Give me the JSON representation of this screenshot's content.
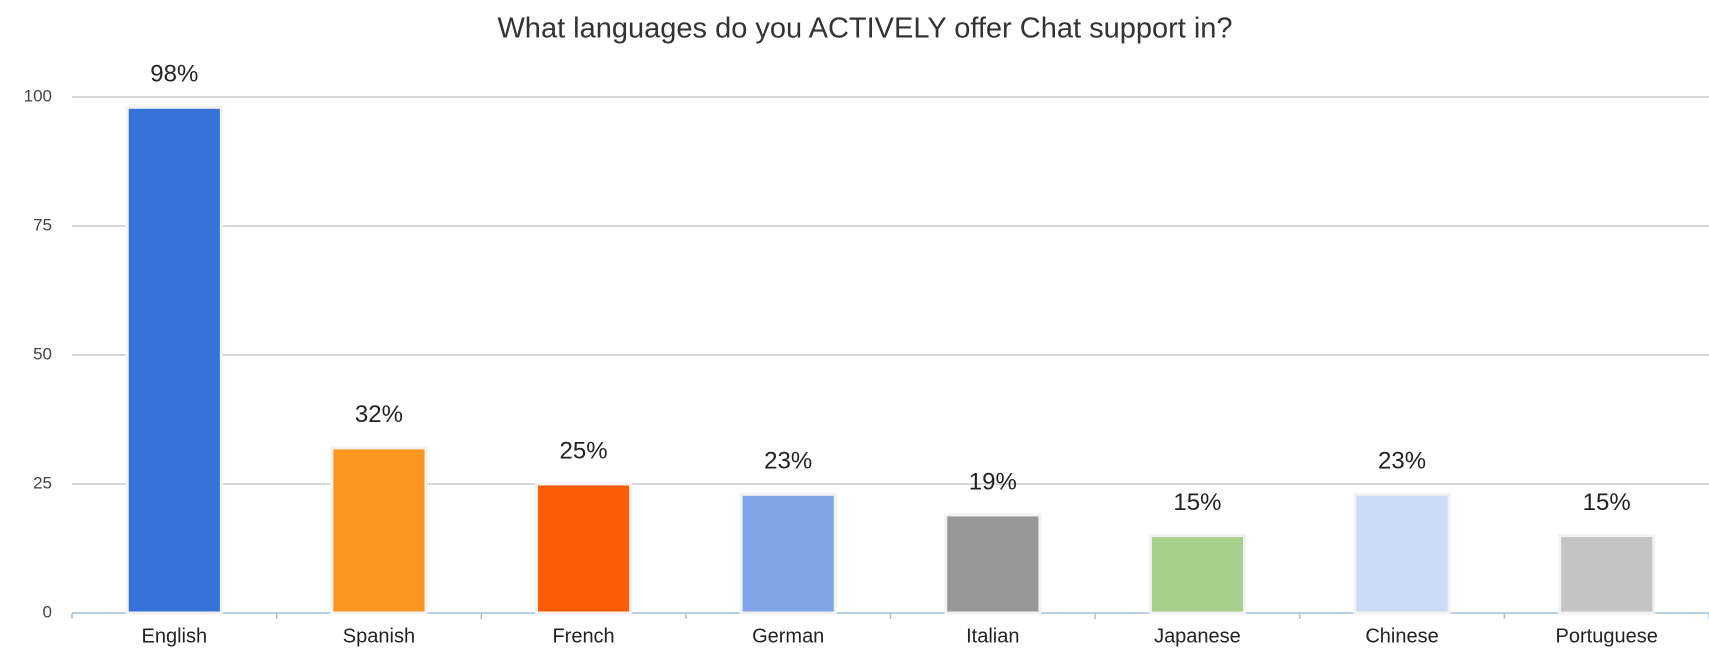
{
  "chart_data": {
    "type": "bar",
    "title": "What languages do you ACTIVELY offer Chat support in?",
    "categories": [
      "English",
      "Spanish",
      "French",
      "German",
      "Italian",
      "Japanese",
      "Chinese",
      "Portuguese"
    ],
    "values": [
      98,
      32,
      25,
      23,
      19,
      15,
      23,
      15
    ],
    "value_labels": [
      "98%",
      "32%",
      "25%",
      "23%",
      "19%",
      "15%",
      "23%",
      "15%"
    ],
    "colors": [
      "#3673d8",
      "#fb9620",
      "#fd5b04",
      "#7fa5e6",
      "#979797",
      "#a7d08c",
      "#cddcf6",
      "#c4c4c4"
    ],
    "ylim": [
      0,
      100
    ],
    "yticks": [
      0,
      25,
      50,
      75,
      100
    ],
    "grid": true
  }
}
